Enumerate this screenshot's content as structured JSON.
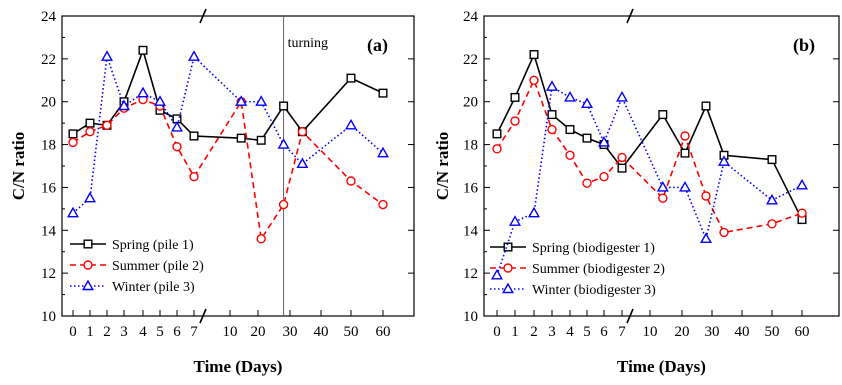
{
  "chart_data": [
    {
      "type": "line",
      "panel_label": "(a)",
      "xlabel": "Time (Days)",
      "ylabel": "C/N ratio",
      "ylim": [
        10,
        24
      ],
      "yticks": [
        "10",
        "12",
        "14",
        "16",
        "18",
        "20",
        "22",
        "24"
      ],
      "x_tick_labels": [
        "0",
        "1",
        "2",
        "3",
        "4",
        "5",
        "6",
        "7",
        "10",
        "20",
        "30",
        "40",
        "50",
        "60"
      ],
      "x_break_after": "7",
      "grid": false,
      "legend_position": "bottom-left",
      "annotation": {
        "text": "turning",
        "x": "28"
      },
      "x": [
        "0",
        "1",
        "2",
        "3",
        "4",
        "5",
        "6",
        "7",
        "14",
        "21",
        "28",
        "34",
        "50",
        "60"
      ],
      "series": [
        {
          "name": "Spring (pile 1)",
          "color": "#000000",
          "marker": "square",
          "dash": "solid",
          "values": [
            18.5,
            19.0,
            18.9,
            20.0,
            22.4,
            19.6,
            19.2,
            18.4,
            18.3,
            18.2,
            19.8,
            18.6,
            21.1,
            20.4
          ]
        },
        {
          "name": "Summer (pile 2)",
          "color": "#ff0000",
          "marker": "circle",
          "dash": "dashed",
          "values": [
            18.1,
            18.6,
            18.9,
            19.7,
            20.1,
            19.8,
            17.9,
            16.5,
            20.0,
            13.6,
            15.2,
            18.6,
            16.3,
            15.2
          ]
        },
        {
          "name": "Winter (pile 3)",
          "color": "#0000ff",
          "marker": "triangle",
          "dash": "dotted",
          "values": [
            14.8,
            15.5,
            22.1,
            19.8,
            20.4,
            20.0,
            18.8,
            22.1,
            20.0,
            20.0,
            18.0,
            17.1,
            18.9,
            17.6
          ]
        }
      ]
    },
    {
      "type": "line",
      "panel_label": "(b)",
      "xlabel": "Time (Days)",
      "ylabel": "C/N ratio",
      "ylim": [
        10,
        24
      ],
      "yticks": [
        "10",
        "12",
        "14",
        "16",
        "18",
        "20",
        "22",
        "24"
      ],
      "x_tick_labels": [
        "0",
        "1",
        "2",
        "3",
        "4",
        "5",
        "6",
        "7",
        "10",
        "20",
        "30",
        "40",
        "50",
        "60"
      ],
      "x_break_after": "7",
      "grid": false,
      "legend_position": "bottom-left",
      "x": [
        "0",
        "1",
        "2",
        "3",
        "4",
        "5",
        "6",
        "7",
        "14",
        "21",
        "28",
        "34",
        "50",
        "60"
      ],
      "series": [
        {
          "name": "Spring (biodigester 1)",
          "color": "#000000",
          "marker": "square",
          "dash": "solid",
          "values": [
            18.5,
            20.2,
            22.2,
            19.4,
            18.7,
            18.3,
            18.0,
            16.9,
            19.4,
            17.6,
            19.8,
            17.5,
            17.3,
            14.5
          ]
        },
        {
          "name": "Summer (biodigester 2)",
          "color": "#ff0000",
          "marker": "circle",
          "dash": "dashed",
          "values": [
            17.8,
            19.1,
            21.0,
            18.7,
            17.5,
            16.2,
            16.5,
            17.4,
            15.5,
            18.4,
            15.6,
            13.9,
            14.3,
            14.8
          ]
        },
        {
          "name": "Winter (biodigester 3)",
          "color": "#0000ff",
          "marker": "triangle",
          "dash": "dotted",
          "values": [
            11.9,
            14.4,
            14.8,
            20.7,
            20.2,
            19.9,
            18.1,
            20.2,
            16.0,
            16.0,
            13.6,
            17.2,
            15.4,
            16.1
          ]
        }
      ]
    }
  ]
}
